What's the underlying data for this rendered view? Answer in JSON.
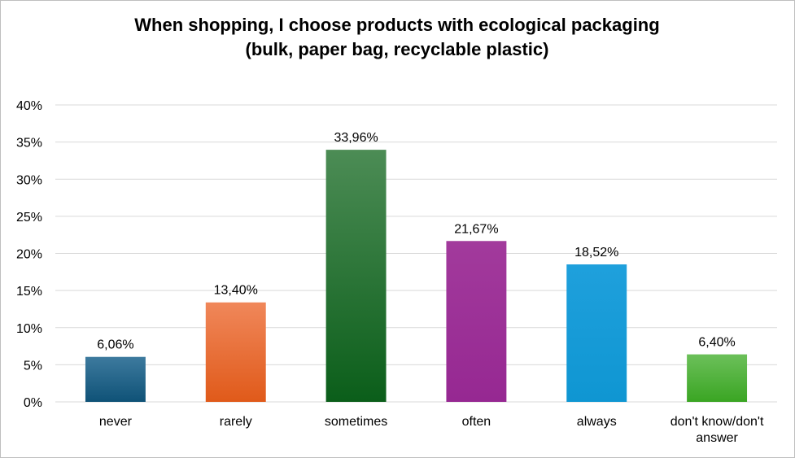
{
  "chart_data": {
    "type": "bar",
    "title": [
      "When shopping, I choose products with ecological packaging",
      "(bulk, paper bag, recyclable plastic)"
    ],
    "xlabel": "",
    "ylabel": "",
    "ylim": [
      0,
      40
    ],
    "y_ticks": [
      "0%",
      "5%",
      "10%",
      "15%",
      "20%",
      "25%",
      "30%",
      "35%",
      "40%"
    ],
    "grid": true,
    "legend": "none",
    "categories": [
      [
        "never"
      ],
      [
        "rarely"
      ],
      [
        "sometimes"
      ],
      [
        "often"
      ],
      [
        "always"
      ],
      [
        "don't know/don't",
        "answer"
      ]
    ],
    "values": [
      6.06,
      13.4,
      33.96,
      21.67,
      18.52,
      6.4
    ],
    "data_labels": [
      "6,06%",
      "13,40%",
      "33,96%",
      "21,67%",
      "18,52%",
      "6,40%"
    ],
    "colors": [
      [
        "#3d7a9e",
        "#0f5277"
      ],
      [
        "#f0875a",
        "#e05a1a"
      ],
      [
        "#4c8c55",
        "#0b5e1a"
      ],
      [
        "#a23a9c",
        "#962892"
      ],
      [
        "#1fa0dc",
        "#0f96d2"
      ],
      [
        "#6cc05a",
        "#3aa523"
      ]
    ]
  }
}
